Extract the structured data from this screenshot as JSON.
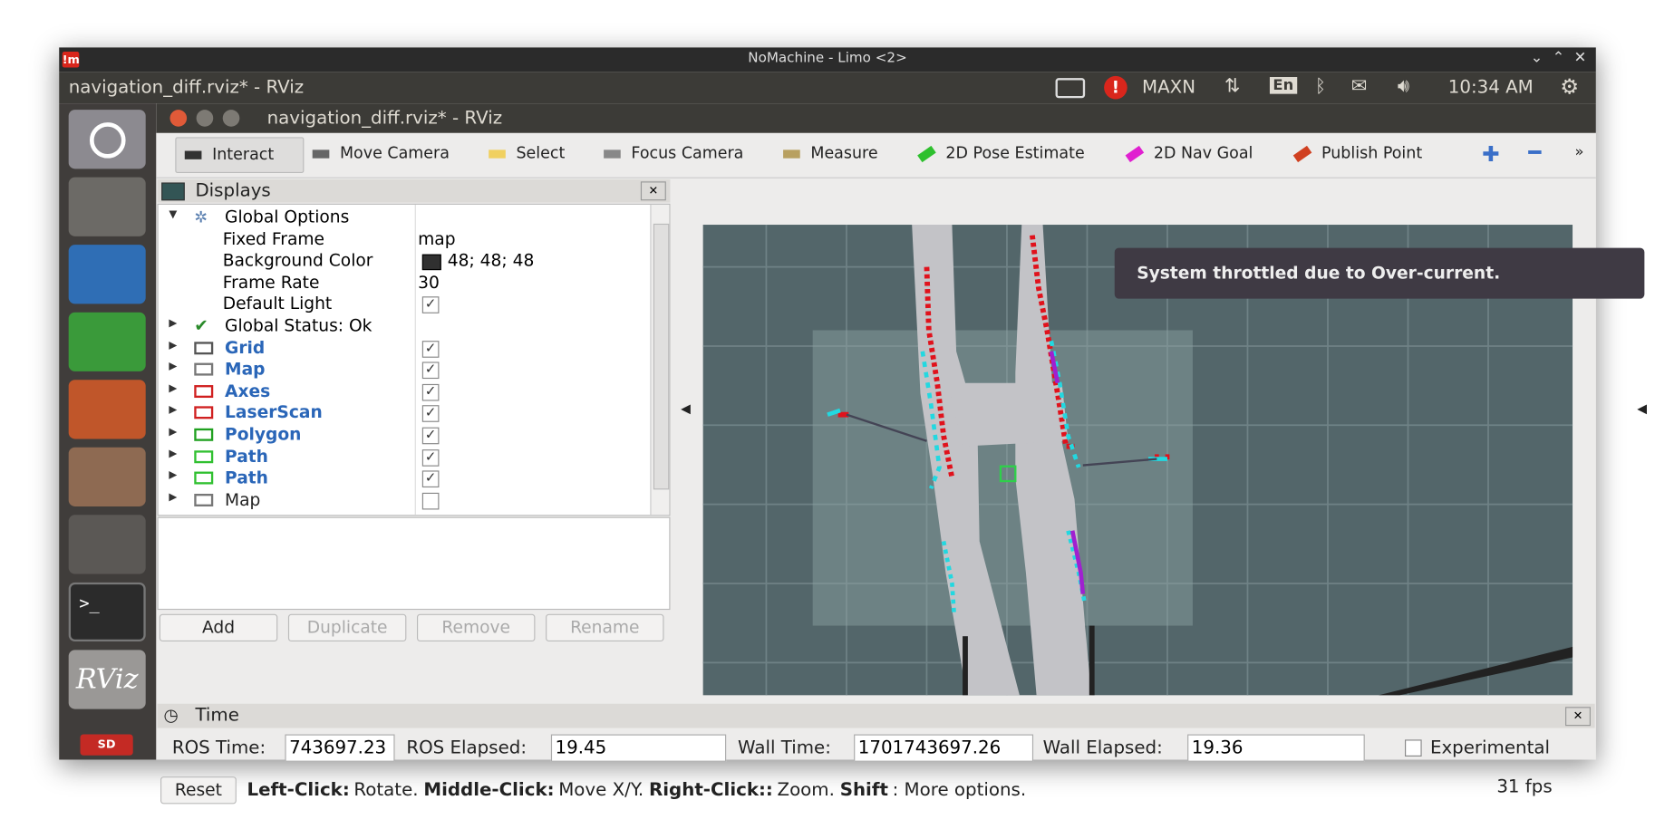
{
  "window": {
    "logo": "!m",
    "title": "NoMachine - Limo <2>"
  },
  "topbar": {
    "app_title": "navigation_diff.rviz* - RViz",
    "power_mode": "MAXN",
    "keyboard": "En",
    "clock": "10:34 AM"
  },
  "launcher": {
    "rviz_label": "RViz",
    "sd_label": "SD"
  },
  "rviz": {
    "title": "navigation_diff.rviz* - RViz",
    "toolbar": [
      "Interact",
      "Move Camera",
      "Select",
      "Focus Camera",
      "Measure",
      "2D Pose Estimate",
      "2D Nav Goal",
      "Publish Point"
    ],
    "displays": {
      "title": "Displays",
      "global_options": "Global Options",
      "properties": [
        {
          "name": "Fixed Frame",
          "value": "map"
        },
        {
          "name": "Background Color",
          "value": "48; 48; 48"
        },
        {
          "name": "Frame Rate",
          "value": "30"
        },
        {
          "name": "Default Light",
          "checked": true
        }
      ],
      "global_status": "Global Status: Ok",
      "items": [
        {
          "label": "Grid",
          "enabled": true
        },
        {
          "label": "Map",
          "enabled": true
        },
        {
          "label": "Axes",
          "enabled": true
        },
        {
          "label": "LaserScan",
          "enabled": true
        },
        {
          "label": "Polygon",
          "enabled": true
        },
        {
          "label": "Path",
          "enabled": true
        },
        {
          "label": "Path",
          "enabled": true
        },
        {
          "label": "Map",
          "enabled": false
        }
      ],
      "buttons": [
        "Add",
        "Duplicate",
        "Remove",
        "Rename"
      ]
    },
    "notification": "System throttled due to Over-current.",
    "time": {
      "title": "Time",
      "fields": [
        {
          "label": "ROS Time:",
          "value": "743697.23"
        },
        {
          "label": "ROS Elapsed:",
          "value": "19.45"
        },
        {
          "label": "Wall Time:",
          "value": "1701743697.26"
        },
        {
          "label": "Wall Elapsed:",
          "value": "19.36"
        }
      ],
      "experimental": "Experimental"
    },
    "status": {
      "reset": "Reset",
      "parts": [
        {
          "text": "Left-Click:",
          "bold": true
        },
        {
          "text": "Rotate."
        },
        {
          "text": "Middle-Click:",
          "bold": true
        },
        {
          "text": "Move X/Y."
        },
        {
          "text": "Right-Click::",
          "bold": true
        },
        {
          "text": "Zoom."
        },
        {
          "text": "Shift",
          "bold": true
        },
        {
          "text": ": More options."
        }
      ],
      "fps": "31 fps"
    }
  }
}
